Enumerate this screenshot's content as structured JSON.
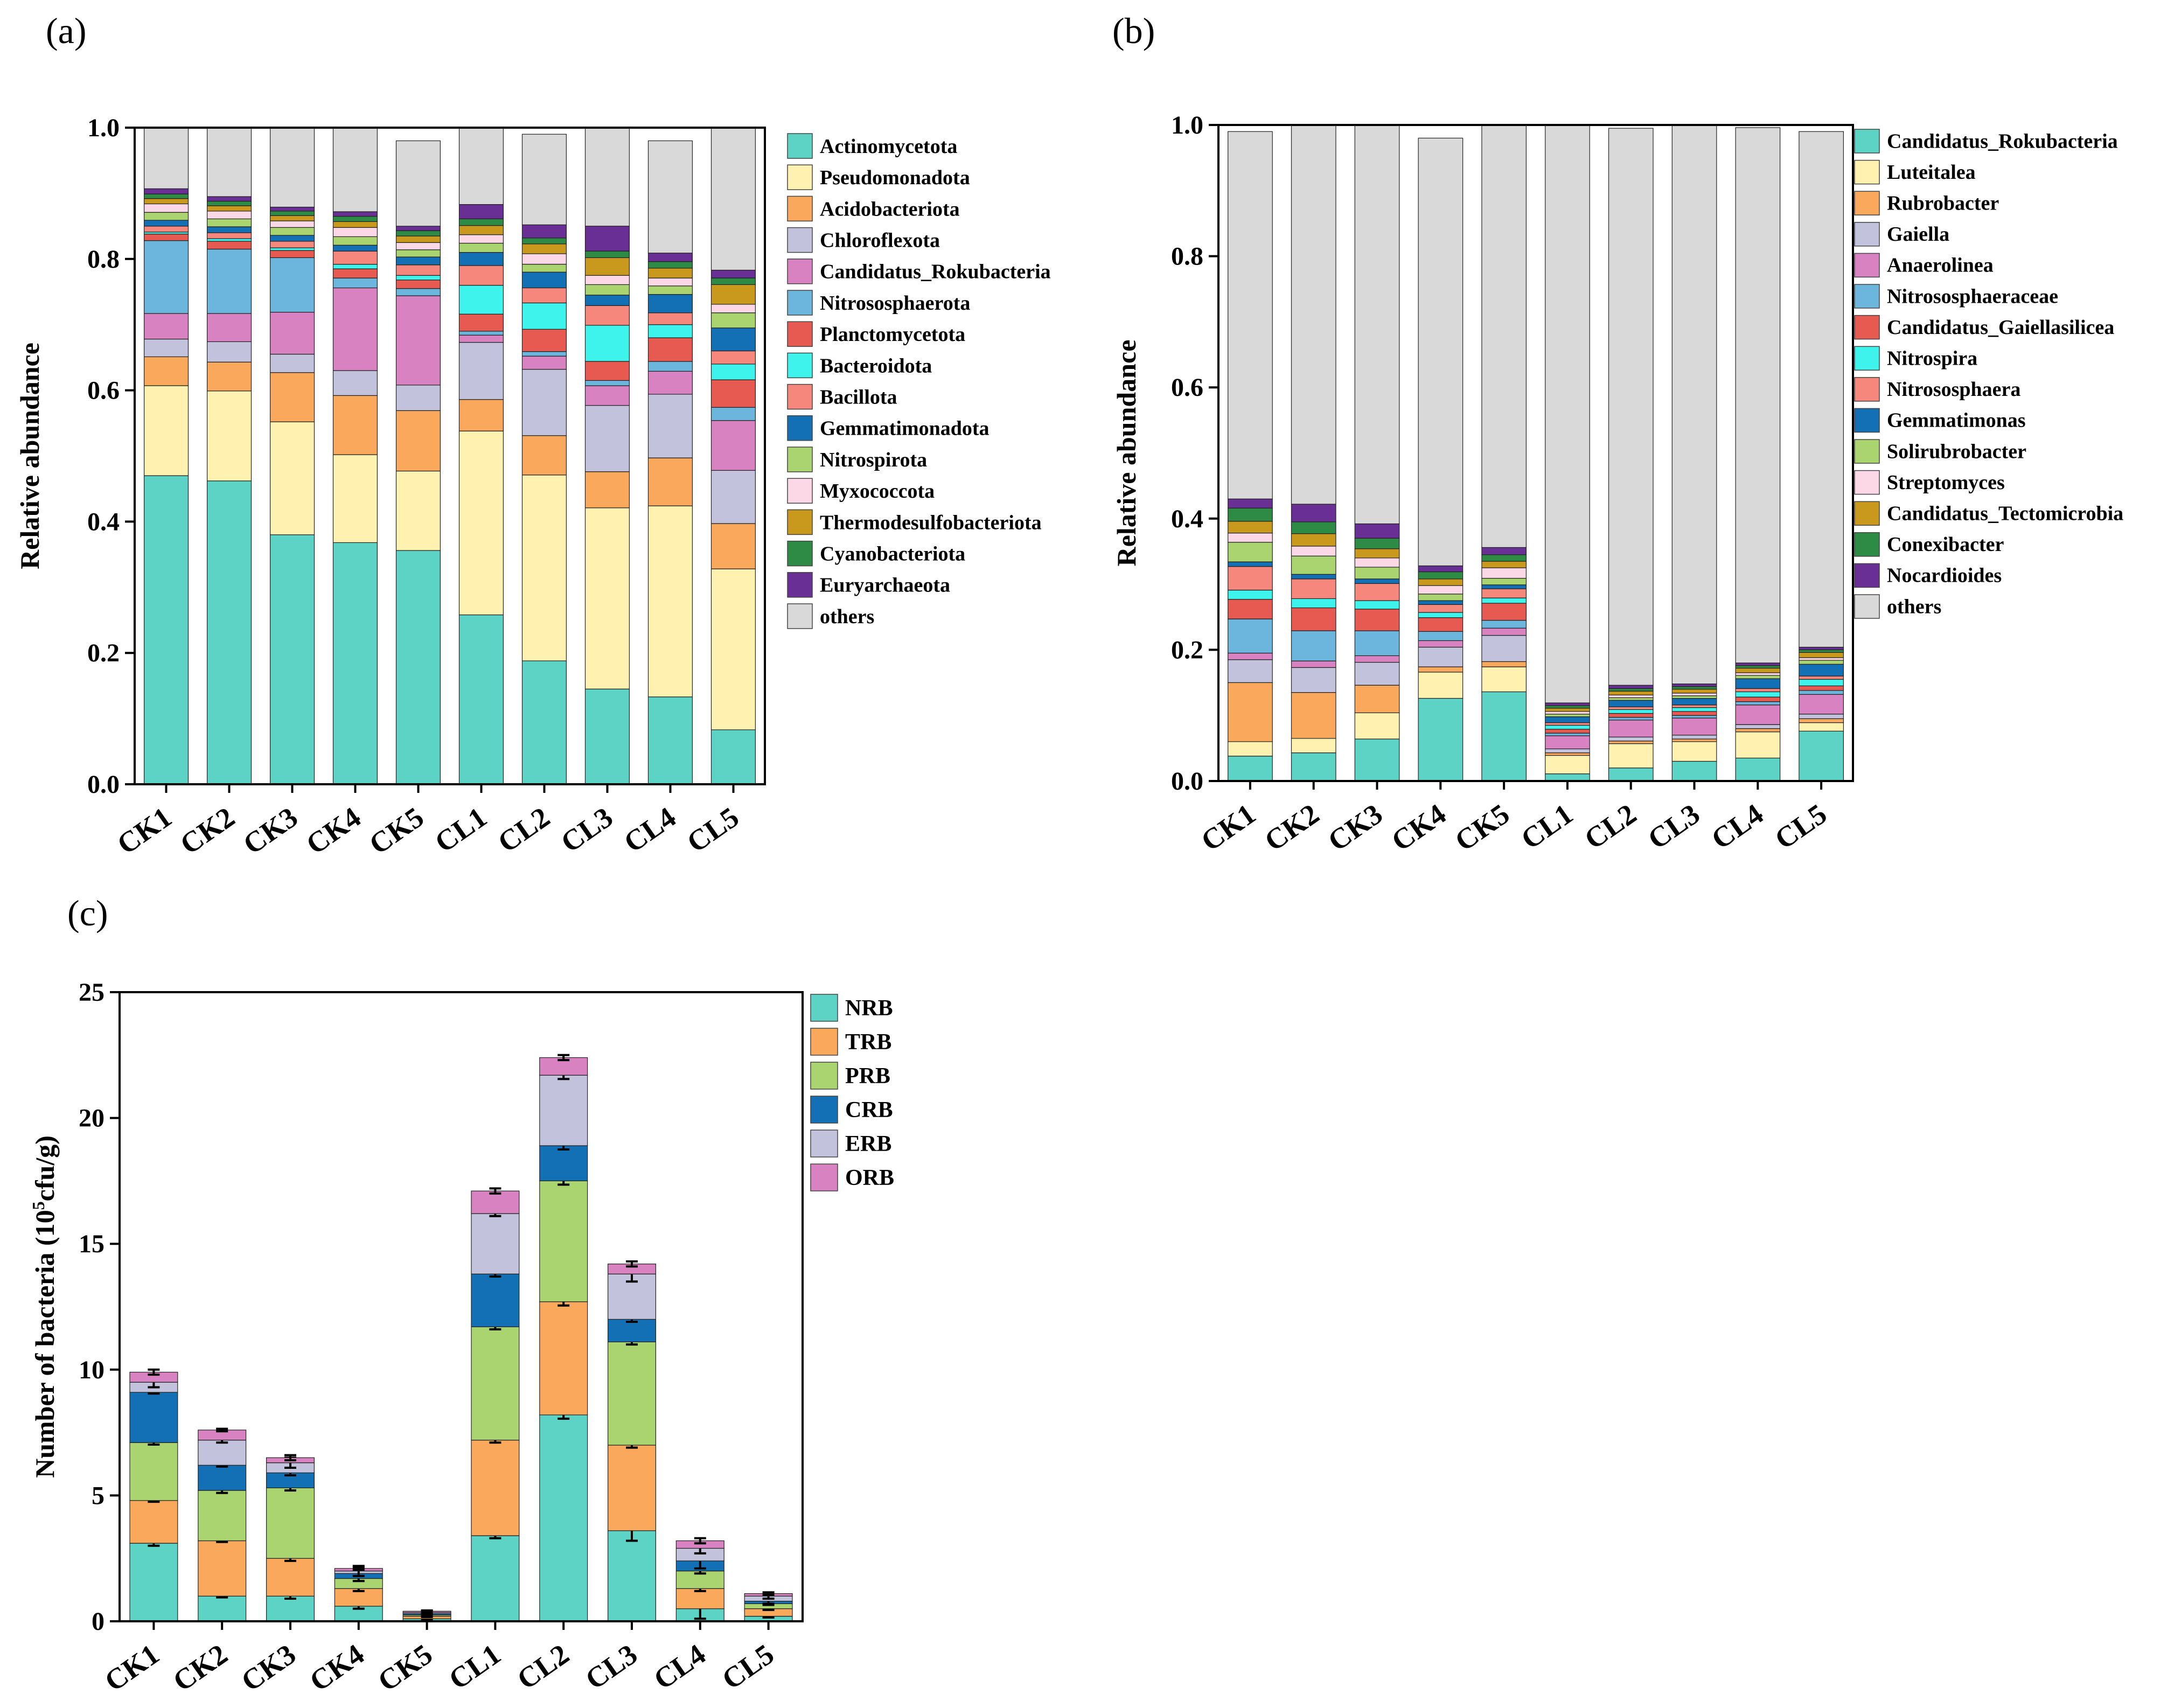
{
  "chart_data": [
    {
      "panel_label": "(a)",
      "type": "bar",
      "stacked": true,
      "ylabel": "Relative abundance",
      "ylim": [
        0,
        1.0
      ],
      "yticks": [
        "0.0",
        "0.2",
        "0.4",
        "0.6",
        "0.8",
        "1.0"
      ],
      "categories": [
        "CK1",
        "CK2",
        "CK3",
        "CK4",
        "CK5",
        "CL1",
        "CL2",
        "CL3",
        "CL4",
        "CL5"
      ],
      "legend_position": "right",
      "series": [
        {
          "name": "Actinomycetota",
          "color": "#5dd3c5",
          "values": [
            0.47,
            0.462,
            0.38,
            0.368,
            0.356,
            0.258,
            0.188,
            0.145,
            0.133,
            0.083
          ]
        },
        {
          "name": "Pseudomonadota",
          "color": "#fff2b0",
          "values": [
            0.137,
            0.137,
            0.172,
            0.134,
            0.121,
            0.28,
            0.283,
            0.276,
            0.291,
            0.245
          ]
        },
        {
          "name": "Acidobacteriota",
          "color": "#f9a85c",
          "values": [
            0.044,
            0.044,
            0.075,
            0.09,
            0.092,
            0.048,
            0.06,
            0.055,
            0.073,
            0.069
          ]
        },
        {
          "name": "Chloroflexota",
          "color": "#c3c2dd",
          "values": [
            0.027,
            0.031,
            0.028,
            0.038,
            0.039,
            0.087,
            0.101,
            0.101,
            0.097,
            0.081
          ]
        },
        {
          "name": "Candidatus_Rokubacteria",
          "color": "#d882c2",
          "values": [
            0.039,
            0.043,
            0.064,
            0.126,
            0.136,
            0.011,
            0.02,
            0.03,
            0.035,
            0.076
          ]
        },
        {
          "name": "Nitrososphaerota",
          "color": "#6cb6dd",
          "values": [
            0.111,
            0.098,
            0.083,
            0.015,
            0.011,
            0.006,
            0.007,
            0.008,
            0.015,
            0.02
          ]
        },
        {
          "name": "Planctomycetota",
          "color": "#e65a52",
          "values": [
            0.01,
            0.012,
            0.011,
            0.014,
            0.013,
            0.026,
            0.034,
            0.029,
            0.036,
            0.042
          ]
        },
        {
          "name": "Bacteroidota",
          "color": "#3ef3ec",
          "values": [
            0.003,
            0.004,
            0.004,
            0.007,
            0.007,
            0.044,
            0.04,
            0.055,
            0.02,
            0.024
          ]
        },
        {
          "name": "Bacillota",
          "color": "#f6877c",
          "values": [
            0.009,
            0.009,
            0.01,
            0.02,
            0.016,
            0.03,
            0.023,
            0.03,
            0.018,
            0.02
          ]
        },
        {
          "name": "Gemmatimonadota",
          "color": "#1370b5",
          "values": [
            0.009,
            0.009,
            0.009,
            0.009,
            0.012,
            0.02,
            0.024,
            0.016,
            0.028,
            0.035
          ]
        },
        {
          "name": "Nitrospirota",
          "color": "#a9d46f",
          "values": [
            0.012,
            0.012,
            0.012,
            0.013,
            0.011,
            0.014,
            0.012,
            0.016,
            0.013,
            0.023
          ]
        },
        {
          "name": "Myxococcota",
          "color": "#fcd7e6",
          "values": [
            0.013,
            0.012,
            0.01,
            0.014,
            0.011,
            0.013,
            0.016,
            0.014,
            0.012,
            0.013
          ]
        },
        {
          "name": "Thermodesulfobacteriota",
          "color": "#c8991d",
          "values": [
            0.008,
            0.008,
            0.008,
            0.009,
            0.01,
            0.014,
            0.015,
            0.027,
            0.015,
            0.03
          ]
        },
        {
          "name": "Cyanobacteriota",
          "color": "#2d8b45",
          "values": [
            0.007,
            0.007,
            0.007,
            0.008,
            0.008,
            0.01,
            0.009,
            0.01,
            0.01,
            0.01
          ]
        },
        {
          "name": "Euryarchaeota",
          "color": "#6a2f95",
          "values": [
            0.008,
            0.007,
            0.006,
            0.007,
            0.007,
            0.022,
            0.02,
            0.038,
            0.013,
            0.012
          ]
        },
        {
          "name": "others",
          "color": "#d9d9d9",
          "values": [
            0.093,
            0.105,
            0.121,
            0.128,
            0.13,
            0.117,
            0.138,
            0.15,
            0.171,
            0.217
          ]
        }
      ]
    },
    {
      "panel_label": "(b)",
      "type": "bar",
      "stacked": true,
      "ylabel": "Relative abundance",
      "ylim": [
        0,
        1.0
      ],
      "yticks": [
        "0.0",
        "0.2",
        "0.4",
        "0.6",
        "0.8",
        "1.0"
      ],
      "categories": [
        "CK1",
        "CK2",
        "CK3",
        "CK4",
        "CK5",
        "CL1",
        "CL2",
        "CL3",
        "CL4",
        "CL5"
      ],
      "legend_position": "right",
      "series": [
        {
          "name": "Candidatus_Rokubacteria",
          "color": "#5dd3c5",
          "values": [
            0.038,
            0.043,
            0.064,
            0.126,
            0.136,
            0.011,
            0.02,
            0.03,
            0.035,
            0.076
          ]
        },
        {
          "name": "Luteitalea",
          "color": "#fff2b0",
          "values": [
            0.022,
            0.022,
            0.04,
            0.04,
            0.038,
            0.028,
            0.037,
            0.03,
            0.04,
            0.013
          ]
        },
        {
          "name": "Rubrobacter",
          "color": "#f9a85c",
          "values": [
            0.09,
            0.07,
            0.042,
            0.008,
            0.008,
            0.004,
            0.004,
            0.004,
            0.005,
            0.006
          ]
        },
        {
          "name": "Gaiella",
          "color": "#c3c2dd",
          "values": [
            0.035,
            0.038,
            0.035,
            0.03,
            0.04,
            0.006,
            0.006,
            0.006,
            0.006,
            0.007
          ]
        },
        {
          "name": "Anaerolinea",
          "color": "#d882c2",
          "values": [
            0.01,
            0.01,
            0.01,
            0.01,
            0.011,
            0.02,
            0.026,
            0.026,
            0.03,
            0.03
          ]
        },
        {
          "name": "Nitrososphaeraceae",
          "color": "#6cb6dd",
          "values": [
            0.052,
            0.046,
            0.038,
            0.014,
            0.012,
            0.004,
            0.004,
            0.004,
            0.005,
            0.006
          ]
        },
        {
          "name": "Candidatus_Gaiellasilicea",
          "color": "#e65a52",
          "values": [
            0.03,
            0.035,
            0.033,
            0.021,
            0.026,
            0.006,
            0.006,
            0.006,
            0.007,
            0.007
          ]
        },
        {
          "name": "Nitrospira",
          "color": "#3ef3ec",
          "values": [
            0.014,
            0.014,
            0.013,
            0.008,
            0.008,
            0.006,
            0.006,
            0.006,
            0.008,
            0.01
          ]
        },
        {
          "name": "Nitrososphaera",
          "color": "#f6877c",
          "values": [
            0.036,
            0.03,
            0.026,
            0.012,
            0.014,
            0.004,
            0.004,
            0.004,
            0.005,
            0.005
          ]
        },
        {
          "name": "Gemmatimonas",
          "color": "#1370b5",
          "values": [
            0.007,
            0.007,
            0.007,
            0.006,
            0.006,
            0.009,
            0.01,
            0.01,
            0.015,
            0.018
          ]
        },
        {
          "name": "Solirubrobacter",
          "color": "#a9d46f",
          "values": [
            0.03,
            0.028,
            0.018,
            0.01,
            0.01,
            0.004,
            0.004,
            0.004,
            0.005,
            0.006
          ]
        },
        {
          "name": "Streptomyces",
          "color": "#fcd7e6",
          "values": [
            0.014,
            0.015,
            0.014,
            0.013,
            0.016,
            0.004,
            0.004,
            0.004,
            0.004,
            0.004
          ]
        },
        {
          "name": "Candidatus_Tectomicrobia",
          "color": "#c8991d",
          "values": [
            0.018,
            0.019,
            0.014,
            0.01,
            0.01,
            0.005,
            0.006,
            0.006,
            0.007,
            0.008
          ]
        },
        {
          "name": "Conexibacter",
          "color": "#2d8b45",
          "values": [
            0.02,
            0.018,
            0.016,
            0.011,
            0.01,
            0.004,
            0.004,
            0.004,
            0.004,
            0.004
          ]
        },
        {
          "name": "Nocardioides",
          "color": "#6a2f95",
          "values": [
            0.014,
            0.027,
            0.022,
            0.009,
            0.011,
            0.004,
            0.005,
            0.004,
            0.004,
            0.004
          ]
        },
        {
          "name": "others",
          "color": "#d9d9d9",
          "values": [
            0.56,
            0.578,
            0.608,
            0.652,
            0.644,
            0.88,
            0.849,
            0.852,
            0.816,
            0.786
          ]
        }
      ]
    },
    {
      "panel_label": "(c)",
      "type": "bar",
      "stacked": true,
      "ylabel": "Number of bacteria (10",
      "ylabel_sup": "5",
      "ylabel_tail": "cfu/g)",
      "ylim": [
        0,
        25
      ],
      "yticks": [
        "0",
        "5",
        "10",
        "15",
        "20",
        "25"
      ],
      "categories": [
        "CK1",
        "CK2",
        "CK3",
        "CK4",
        "CK5",
        "CL1",
        "CL2",
        "CL3",
        "CL4",
        "CL5"
      ],
      "legend_position": "top-right",
      "series": [
        {
          "name": "NRB",
          "color": "#5dd3c5",
          "values": [
            3.1,
            1.0,
            1.0,
            0.6,
            0.1,
            3.4,
            8.2,
            3.6,
            0.5,
            0.2
          ],
          "errors": [
            0.1,
            0.05,
            0.1,
            0.1,
            0.03,
            0.1,
            0.15,
            0.4,
            0.4,
            0.05
          ]
        },
        {
          "name": "TRB",
          "color": "#f9a85c",
          "values": [
            1.7,
            2.2,
            1.5,
            0.7,
            0.1,
            3.8,
            4.5,
            3.4,
            0.8,
            0.3
          ],
          "errors": [
            0.05,
            0.05,
            0.1,
            0.1,
            0.03,
            0.1,
            0.15,
            0.1,
            0.1,
            0.05
          ]
        },
        {
          "name": "PRB",
          "color": "#a9d46f",
          "values": [
            2.3,
            2.0,
            2.8,
            0.4,
            0.05,
            4.5,
            4.8,
            4.1,
            0.7,
            0.2
          ],
          "errors": [
            0.08,
            0.1,
            0.1,
            0.1,
            0.03,
            0.1,
            0.15,
            0.1,
            0.1,
            0.05
          ]
        },
        {
          "name": "CRB",
          "color": "#1370b5",
          "values": [
            2.0,
            1.0,
            0.6,
            0.2,
            0.05,
            2.1,
            1.4,
            0.9,
            0.4,
            0.1
          ],
          "errors": [
            0.05,
            0.05,
            0.1,
            0.1,
            0.03,
            0.1,
            0.15,
            0.1,
            0.3,
            0.1
          ]
        },
        {
          "name": "ERB",
          "color": "#c3c2dd",
          "values": [
            0.4,
            1.0,
            0.4,
            0.1,
            0.05,
            2.4,
            2.8,
            1.8,
            0.5,
            0.2
          ],
          "errors": [
            0.2,
            0.1,
            0.2,
            0.2,
            0.05,
            0.1,
            0.15,
            0.3,
            0.2,
            0.1
          ]
        },
        {
          "name": "ORB",
          "color": "#d882c2",
          "values": [
            0.4,
            0.4,
            0.2,
            0.1,
            0.05,
            0.9,
            0.7,
            0.4,
            0.3,
            0.1
          ],
          "errors": [
            0.1,
            0.05,
            0.1,
            0.05,
            0.03,
            0.1,
            0.1,
            0.1,
            0.1,
            0.05
          ]
        }
      ]
    }
  ]
}
